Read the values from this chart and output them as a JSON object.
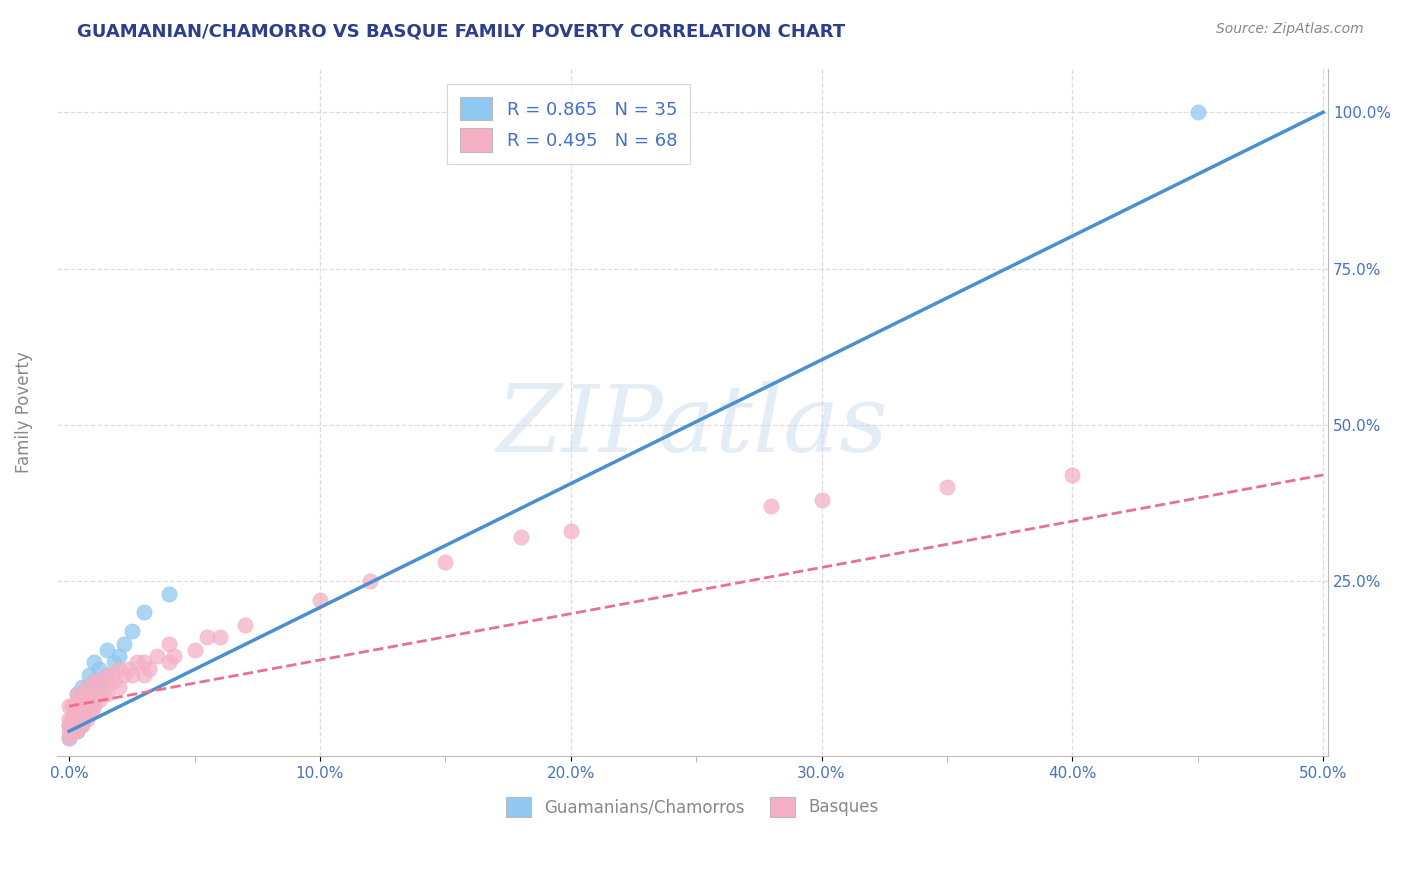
{
  "title": "GUAMANIAN/CHAMORRO VS BASQUE FAMILY POVERTY CORRELATION CHART",
  "source_text": "Source: ZipAtlas.com",
  "ylabel": "Family Poverty",
  "watermark": "ZIPatlas",
  "xlim": [
    -0.005,
    0.502
  ],
  "ylim": [
    -0.03,
    1.07
  ],
  "xtick_labels": [
    "0.0%",
    "",
    "",
    "",
    "",
    "",
    "",
    "",
    "",
    "",
    "10.0%",
    "",
    "",
    "",
    "",
    "",
    "",
    "",
    "",
    "",
    "20.0%",
    "",
    "",
    "",
    "",
    "",
    "",
    "",
    "",
    "",
    "30.0%",
    "",
    "",
    "",
    "",
    "",
    "",
    "",
    "",
    "",
    "40.0%",
    "",
    "",
    "",
    "",
    "",
    "",
    "",
    "",
    "",
    "50.0%"
  ],
  "xtick_vals": [
    0.0,
    0.01,
    0.02,
    0.03,
    0.04,
    0.05,
    0.06,
    0.07,
    0.08,
    0.09,
    0.1,
    0.11,
    0.12,
    0.13,
    0.14,
    0.15,
    0.16,
    0.17,
    0.18,
    0.19,
    0.2,
    0.21,
    0.22,
    0.23,
    0.24,
    0.25,
    0.26,
    0.27,
    0.28,
    0.29,
    0.3,
    0.31,
    0.32,
    0.33,
    0.34,
    0.35,
    0.36,
    0.37,
    0.38,
    0.39,
    0.4,
    0.41,
    0.42,
    0.43,
    0.44,
    0.45,
    0.46,
    0.47,
    0.48,
    0.49,
    0.5
  ],
  "ytick_labels_right": [
    "25.0%",
    "50.0%",
    "75.0%",
    "100.0%"
  ],
  "ytick_vals": [
    0.25,
    0.5,
    0.75,
    1.0
  ],
  "guamanian_color": "#90C8F0",
  "basque_color": "#F5B0C5",
  "guamanian_line_color": "#4A90D0",
  "basque_line_color": "#E87090",
  "legend_text1": "R = 0.865   N = 35",
  "legend_text2": "R = 0.495   N = 68",
  "legend_label1": "Guamanians/Chamorros",
  "legend_label2": "Basques",
  "title_color": "#2C3E8C",
  "axis_label_color": "#888888",
  "tick_color": "#4472C4",
  "background_color": "#FFFFFF",
  "grid_color": "#DDDDDD",
  "guamanian_scatter_x": [
    0.0,
    0.0,
    0.001,
    0.001,
    0.002,
    0.002,
    0.003,
    0.003,
    0.003,
    0.004,
    0.004,
    0.005,
    0.005,
    0.005,
    0.006,
    0.006,
    0.007,
    0.007,
    0.008,
    0.008,
    0.009,
    0.01,
    0.01,
    0.01,
    0.012,
    0.012,
    0.015,
    0.015,
    0.018,
    0.02,
    0.022,
    0.025,
    0.03,
    0.04,
    0.45
  ],
  "guamanian_scatter_y": [
    0.0,
    0.02,
    0.01,
    0.03,
    0.02,
    0.05,
    0.01,
    0.04,
    0.07,
    0.03,
    0.06,
    0.02,
    0.05,
    0.08,
    0.04,
    0.07,
    0.05,
    0.08,
    0.06,
    0.1,
    0.08,
    0.06,
    0.09,
    0.12,
    0.08,
    0.11,
    0.1,
    0.14,
    0.12,
    0.13,
    0.15,
    0.17,
    0.2,
    0.23,
    1.0
  ],
  "basque_scatter_x": [
    0.0,
    0.0,
    0.0,
    0.0,
    0.0,
    0.001,
    0.001,
    0.001,
    0.002,
    0.002,
    0.002,
    0.003,
    0.003,
    0.003,
    0.003,
    0.004,
    0.004,
    0.004,
    0.005,
    0.005,
    0.005,
    0.006,
    0.006,
    0.006,
    0.007,
    0.007,
    0.007,
    0.008,
    0.008,
    0.009,
    0.009,
    0.01,
    0.01,
    0.01,
    0.012,
    0.012,
    0.014,
    0.015,
    0.015,
    0.016,
    0.017,
    0.018,
    0.02,
    0.02,
    0.022,
    0.024,
    0.025,
    0.027,
    0.03,
    0.03,
    0.032,
    0.035,
    0.04,
    0.04,
    0.042,
    0.05,
    0.055,
    0.06,
    0.07,
    0.1,
    0.12,
    0.15,
    0.18,
    0.2,
    0.28,
    0.3,
    0.35,
    0.4
  ],
  "basque_scatter_y": [
    0.0,
    0.01,
    0.02,
    0.03,
    0.05,
    0.01,
    0.03,
    0.05,
    0.01,
    0.03,
    0.05,
    0.01,
    0.03,
    0.05,
    0.07,
    0.02,
    0.04,
    0.06,
    0.02,
    0.04,
    0.06,
    0.03,
    0.05,
    0.07,
    0.03,
    0.05,
    0.08,
    0.04,
    0.07,
    0.04,
    0.07,
    0.05,
    0.07,
    0.09,
    0.06,
    0.09,
    0.07,
    0.07,
    0.1,
    0.09,
    0.1,
    0.09,
    0.08,
    0.11,
    0.1,
    0.11,
    0.1,
    0.12,
    0.1,
    0.12,
    0.11,
    0.13,
    0.12,
    0.15,
    0.13,
    0.14,
    0.16,
    0.16,
    0.18,
    0.22,
    0.25,
    0.28,
    0.32,
    0.33,
    0.37,
    0.38,
    0.4,
    0.42
  ],
  "guamanian_line_x": [
    0.0,
    0.5
  ],
  "guamanian_line_y": [
    0.01,
    1.0
  ],
  "basque_line_x": [
    0.0,
    0.5
  ],
  "basque_line_y": [
    0.05,
    0.42
  ]
}
